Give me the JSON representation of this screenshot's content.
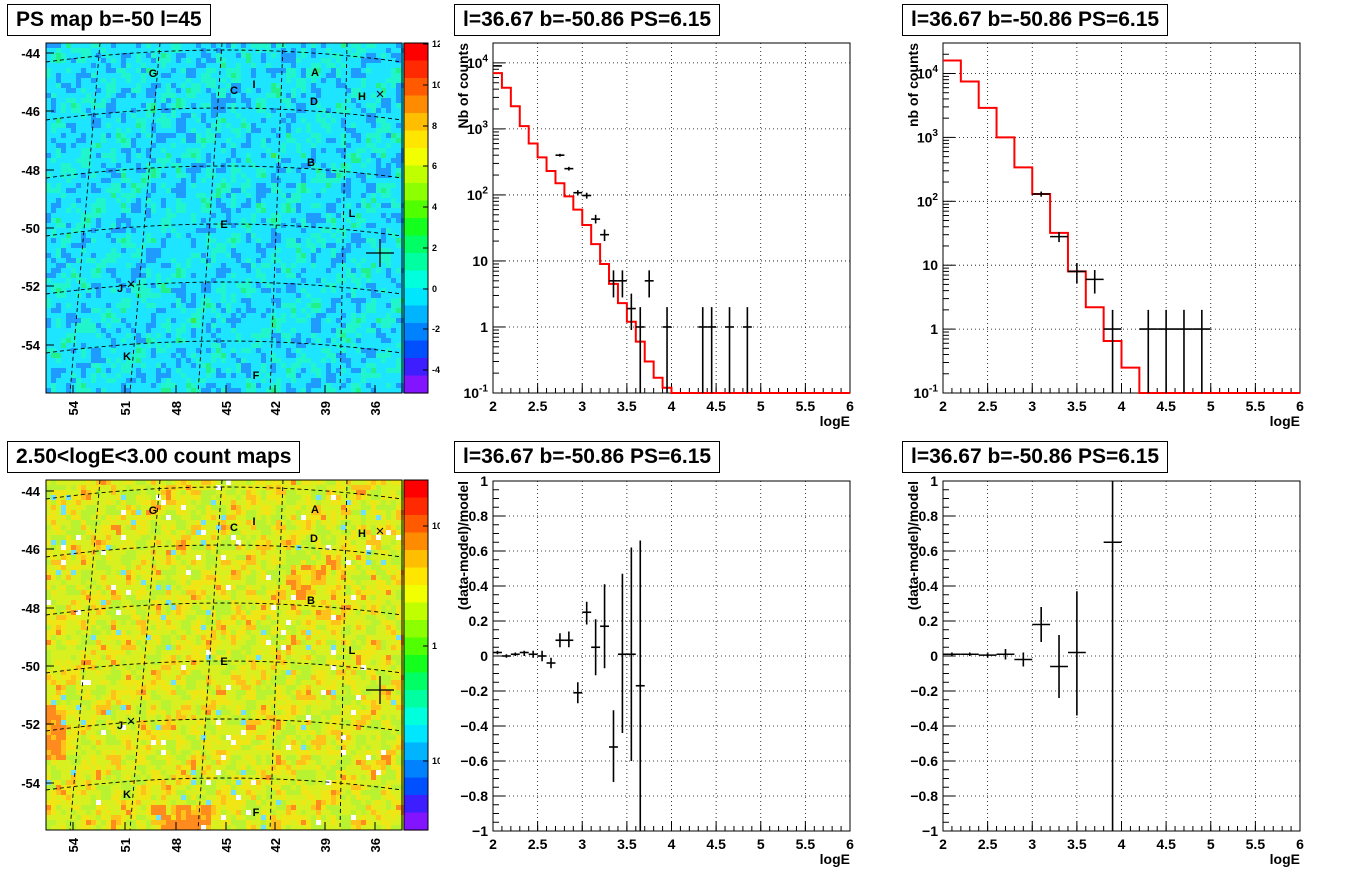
{
  "panels": {
    "map1": {
      "title": "PS map b=-50 l=45",
      "colorbar": {
        "ticks": [
          "12",
          "10",
          "8",
          "6",
          "4",
          "2",
          "0",
          "-2",
          "-4"
        ]
      },
      "y_ticks": [
        "-44",
        "-46",
        "-48",
        "-50",
        "-52",
        "-54"
      ],
      "x_ticks": [
        "54",
        "51",
        "48",
        "45",
        "42",
        "39",
        "36"
      ],
      "labels": [
        "G",
        "A",
        "C",
        "I",
        "H",
        "D",
        "B",
        "L",
        "E",
        "J",
        "K",
        "F"
      ]
    },
    "map2": {
      "title": "2.50<logE<3.00 count maps",
      "colorbar": {
        "ticks": [
          "10",
          "1",
          "10^-1"
        ]
      },
      "y_ticks": [
        "-44",
        "-46",
        "-48",
        "-50",
        "-52",
        "-54"
      ],
      "x_ticks": [
        "54",
        "51",
        "48",
        "45",
        "42",
        "39",
        "36"
      ],
      "labels": [
        "G",
        "A",
        "C",
        "I",
        "H",
        "D",
        "B",
        "L",
        "E",
        "J",
        "K",
        "F"
      ]
    },
    "spec1": {
      "title": "l=36.67 b=-50.86 PS=6.15"
    },
    "spec2": {
      "title": "l=36.67 b=-50.86 PS=6.15"
    },
    "res1": {
      "title": "l=36.67 b=-50.86 PS=6.15"
    },
    "res2": {
      "title": "l=36.67 b=-50.86 PS=6.15"
    }
  },
  "colors": {
    "model": "#ff0000",
    "data": "#000000",
    "grid": "#000000"
  },
  "chart_data": [
    {
      "type": "heatmap",
      "title": "PS map b=-50 l=45",
      "xlabel": "",
      "ylabel": "",
      "x_ticks": [
        54,
        51,
        48,
        45,
        42,
        39,
        36
      ],
      "y_ticks": [
        -44,
        -46,
        -48,
        -50,
        -52,
        -54
      ],
      "colorbar_range": [
        -5,
        12
      ],
      "annotations": [
        "G",
        "A",
        "C",
        "I",
        "H",
        "D",
        "B",
        "L",
        "E",
        "J",
        "K",
        "F"
      ]
    },
    {
      "type": "line",
      "title": "l=36.67 b=-50.86 PS=6.15",
      "xlabel": "logE",
      "ylabel": "Nb of counts",
      "xlim": [
        2,
        6
      ],
      "ylim": [
        0.1,
        20000
      ],
      "log_y": true,
      "x_ticks": [
        "2",
        "2.5",
        "3",
        "3.5",
        "4",
        "4.5",
        "5",
        "5.5",
        "6"
      ],
      "y_ticks": [
        "10^-1",
        "1",
        "10",
        "10^2",
        "10^3",
        "10^4"
      ],
      "grid": true,
      "model_step": {
        "edges": [
          2.0,
          2.1,
          2.2,
          2.3,
          2.4,
          2.5,
          2.6,
          2.7,
          2.8,
          2.9,
          3.0,
          3.1,
          3.2,
          3.3,
          3.4,
          3.5,
          3.6,
          3.7,
          3.8,
          3.9,
          4.0,
          4.1,
          6.0
        ],
        "values": [
          7000,
          4200,
          2200,
          1100,
          600,
          370,
          230,
          150,
          95,
          60,
          35,
          18,
          9,
          4.5,
          2.3,
          1.2,
          0.6,
          0.3,
          0.17,
          0.12,
          0.1,
          0.1
        ]
      },
      "data_points": [
        {
          "x": 2.05,
          "y": 9000,
          "xerr": 0.05,
          "ylo": 8800,
          "yhi": 9200
        },
        {
          "x": 2.75,
          "y": 400,
          "xerr": 0.05,
          "ylo": 380,
          "yhi": 420
        },
        {
          "x": 2.85,
          "y": 250,
          "xerr": 0.05,
          "ylo": 234,
          "yhi": 266
        },
        {
          "x": 2.95,
          "y": 108,
          "xerr": 0.05,
          "ylo": 98,
          "yhi": 118
        },
        {
          "x": 3.05,
          "y": 98,
          "xerr": 0.05,
          "ylo": 88,
          "yhi": 108
        },
        {
          "x": 3.15,
          "y": 43,
          "xerr": 0.05,
          "ylo": 37,
          "yhi": 50
        },
        {
          "x": 3.25,
          "y": 25,
          "xerr": 0.05,
          "ylo": 20,
          "yhi": 30
        },
        {
          "x": 3.35,
          "y": 5,
          "xerr": 0.05,
          "ylo": 2.8,
          "yhi": 7.2
        },
        {
          "x": 3.45,
          "y": 5,
          "xerr": 0.05,
          "ylo": 2.8,
          "yhi": 7.2
        },
        {
          "x": 3.55,
          "y": 1.9,
          "xerr": 0.05,
          "ylo": 0.9,
          "yhi": 3.2
        },
        {
          "x": 3.65,
          "y": 1,
          "xerr": 0.05,
          "ylo": 0.1,
          "yhi": 2
        },
        {
          "x": 3.75,
          "y": 5,
          "xerr": 0.05,
          "ylo": 2.8,
          "yhi": 7.2
        },
        {
          "x": 3.95,
          "y": 1,
          "xerr": 0.05,
          "ylo": 0.1,
          "yhi": 2
        },
        {
          "x": 4.35,
          "y": 1,
          "xerr": 0.05,
          "ylo": 0.1,
          "yhi": 2
        },
        {
          "x": 4.45,
          "y": 1,
          "xerr": 0.05,
          "ylo": 0.1,
          "yhi": 2
        },
        {
          "x": 4.65,
          "y": 1,
          "xerr": 0.05,
          "ylo": 0.1,
          "yhi": 2
        },
        {
          "x": 4.85,
          "y": 1,
          "xerr": 0.05,
          "ylo": 0.1,
          "yhi": 2
        }
      ]
    },
    {
      "type": "line",
      "title": "l=36.67 b=-50.86 PS=6.15",
      "xlabel": "logE",
      "ylabel": "nb of counts",
      "xlim": [
        2,
        6
      ],
      "ylim": [
        0.1,
        30000
      ],
      "log_y": true,
      "x_ticks": [
        "2",
        "2.5",
        "3",
        "3.5",
        "4",
        "4.5",
        "5",
        "5.5",
        "6"
      ],
      "y_ticks": [
        "10^-1",
        "1",
        "10",
        "10^2",
        "10^3",
        "10^4"
      ],
      "grid": true,
      "model_step": {
        "edges": [
          2.0,
          2.2,
          2.4,
          2.6,
          2.8,
          3.0,
          3.2,
          3.4,
          3.6,
          3.8,
          4.0,
          4.2,
          6.0
        ],
        "values": [
          16000,
          7500,
          2900,
          1000,
          340,
          130,
          32,
          8,
          2.2,
          0.65,
          0.25,
          0.1
        ]
      },
      "data_points": [
        {
          "x": 3.1,
          "y": 130,
          "xerr": 0.1,
          "ylo": 118,
          "yhi": 142
        },
        {
          "x": 3.3,
          "y": 28,
          "xerr": 0.1,
          "ylo": 23,
          "yhi": 33
        },
        {
          "x": 3.5,
          "y": 8,
          "xerr": 0.1,
          "ylo": 5.2,
          "yhi": 10.8
        },
        {
          "x": 3.7,
          "y": 6,
          "xerr": 0.1,
          "ylo": 3.6,
          "yhi": 8.4
        },
        {
          "x": 3.9,
          "y": 1,
          "xerr": 0.1,
          "ylo": 0.1,
          "yhi": 2
        },
        {
          "x": 4.3,
          "y": 1,
          "xerr": 0.1,
          "ylo": 0.1,
          "yhi": 2
        },
        {
          "x": 4.5,
          "y": 1,
          "xerr": 0.1,
          "ylo": 0.1,
          "yhi": 2
        },
        {
          "x": 4.7,
          "y": 1,
          "xerr": 0.1,
          "ylo": 0.1,
          "yhi": 2
        },
        {
          "x": 4.9,
          "y": 1,
          "xerr": 0.1,
          "ylo": 0.1,
          "yhi": 2
        }
      ]
    },
    {
      "type": "heatmap",
      "title": "2.50<logE<3.00 count maps",
      "xlabel": "",
      "ylabel": "",
      "x_ticks": [
        54,
        51,
        48,
        45,
        42,
        39,
        36
      ],
      "y_ticks": [
        -44,
        -46,
        -48,
        -50,
        -52,
        -54
      ],
      "log_z": true,
      "annotations": [
        "G",
        "A",
        "C",
        "I",
        "H",
        "D",
        "B",
        "L",
        "E",
        "J",
        "K",
        "F"
      ]
    },
    {
      "type": "scatter",
      "title": "l=36.67 b=-50.86 PS=6.15",
      "xlabel": "logE",
      "ylabel": "(data-model)/model",
      "xlim": [
        2,
        6
      ],
      "ylim": [
        -1,
        1
      ],
      "x_ticks": [
        "2",
        "2.5",
        "3",
        "3.5",
        "4",
        "4.5",
        "5",
        "5.5",
        "6"
      ],
      "y_ticks": [
        "1",
        "0.8",
        "0.6",
        "0.4",
        "0.2",
        "0",
        "-0.2",
        "-0.4",
        "-0.6",
        "-0.8",
        "-1"
      ],
      "grid": true,
      "data_points": [
        {
          "x": 2.05,
          "y": 0.02,
          "xerr": 0.05,
          "ylo": 0.01,
          "yhi": 0.03
        },
        {
          "x": 2.15,
          "y": 0.0,
          "xerr": 0.05,
          "ylo": -0.01,
          "yhi": 0.01
        },
        {
          "x": 2.25,
          "y": 0.01,
          "xerr": 0.05,
          "ylo": 0.0,
          "yhi": 0.02
        },
        {
          "x": 2.35,
          "y": 0.02,
          "xerr": 0.05,
          "ylo": 0.0,
          "yhi": 0.03
        },
        {
          "x": 2.45,
          "y": 0.01,
          "xerr": 0.05,
          "ylo": -0.01,
          "yhi": 0.03
        },
        {
          "x": 2.55,
          "y": 0.0,
          "xerr": 0.05,
          "ylo": -0.03,
          "yhi": 0.03
        },
        {
          "x": 2.65,
          "y": -0.04,
          "xerr": 0.05,
          "ylo": -0.07,
          "yhi": -0.01
        },
        {
          "x": 2.75,
          "y": 0.09,
          "xerr": 0.05,
          "ylo": 0.05,
          "yhi": 0.13
        },
        {
          "x": 2.85,
          "y": 0.09,
          "xerr": 0.05,
          "ylo": 0.05,
          "yhi": 0.14
        },
        {
          "x": 2.95,
          "y": -0.21,
          "xerr": 0.05,
          "ylo": -0.27,
          "yhi": -0.15
        },
        {
          "x": 3.05,
          "y": 0.25,
          "xerr": 0.05,
          "ylo": 0.18,
          "yhi": 0.31
        },
        {
          "x": 3.15,
          "y": 0.05,
          "xerr": 0.05,
          "ylo": -0.11,
          "yhi": 0.21
        },
        {
          "x": 3.25,
          "y": 0.17,
          "xerr": 0.05,
          "ylo": -0.07,
          "yhi": 0.41
        },
        {
          "x": 3.35,
          "y": -0.52,
          "xerr": 0.05,
          "ylo": -0.72,
          "yhi": -0.31
        },
        {
          "x": 3.45,
          "y": 0.01,
          "xerr": 0.05,
          "ylo": -0.44,
          "yhi": 0.47
        },
        {
          "x": 3.55,
          "y": 0.01,
          "xerr": 0.05,
          "ylo": -0.6,
          "yhi": 0.62
        },
        {
          "x": 3.65,
          "y": -0.17,
          "xerr": 0.05,
          "ylo": -1.0,
          "yhi": 0.66
        }
      ]
    },
    {
      "type": "scatter",
      "title": "l=36.67 b=-50.86 PS=6.15",
      "xlabel": "logE",
      "ylabel": "(data-model)/model",
      "xlim": [
        2,
        6
      ],
      "ylim": [
        -1,
        1
      ],
      "x_ticks": [
        "2",
        "2.5",
        "3",
        "3.5",
        "4",
        "4.5",
        "5",
        "5.5",
        "6"
      ],
      "y_ticks": [
        "1",
        "0.8",
        "0.6",
        "0.4",
        "0.2",
        "0",
        "-0.2",
        "-0.4",
        "-0.6",
        "-0.8",
        "-1"
      ],
      "grid": true,
      "data_points": [
        {
          "x": 2.1,
          "y": 0.01,
          "xerr": 0.1,
          "ylo": 0.0,
          "yhi": 0.02
        },
        {
          "x": 2.3,
          "y": 0.01,
          "xerr": 0.1,
          "ylo": 0.0,
          "yhi": 0.02
        },
        {
          "x": 2.5,
          "y": 0.005,
          "xerr": 0.1,
          "ylo": -0.01,
          "yhi": 0.02
        },
        {
          "x": 2.7,
          "y": 0.01,
          "xerr": 0.1,
          "ylo": -0.02,
          "yhi": 0.04
        },
        {
          "x": 2.9,
          "y": -0.02,
          "xerr": 0.1,
          "ylo": -0.06,
          "yhi": 0.02
        },
        {
          "x": 3.1,
          "y": 0.18,
          "xerr": 0.1,
          "ylo": 0.08,
          "yhi": 0.28
        },
        {
          "x": 3.3,
          "y": -0.06,
          "xerr": 0.1,
          "ylo": -0.24,
          "yhi": 0.12
        },
        {
          "x": 3.5,
          "y": 0.02,
          "xerr": 0.1,
          "ylo": -0.34,
          "yhi": 0.37
        },
        {
          "x": 3.9,
          "y": 0.65,
          "xerr": 0.1,
          "ylo": -1.0,
          "yhi": 1.0
        }
      ]
    }
  ]
}
